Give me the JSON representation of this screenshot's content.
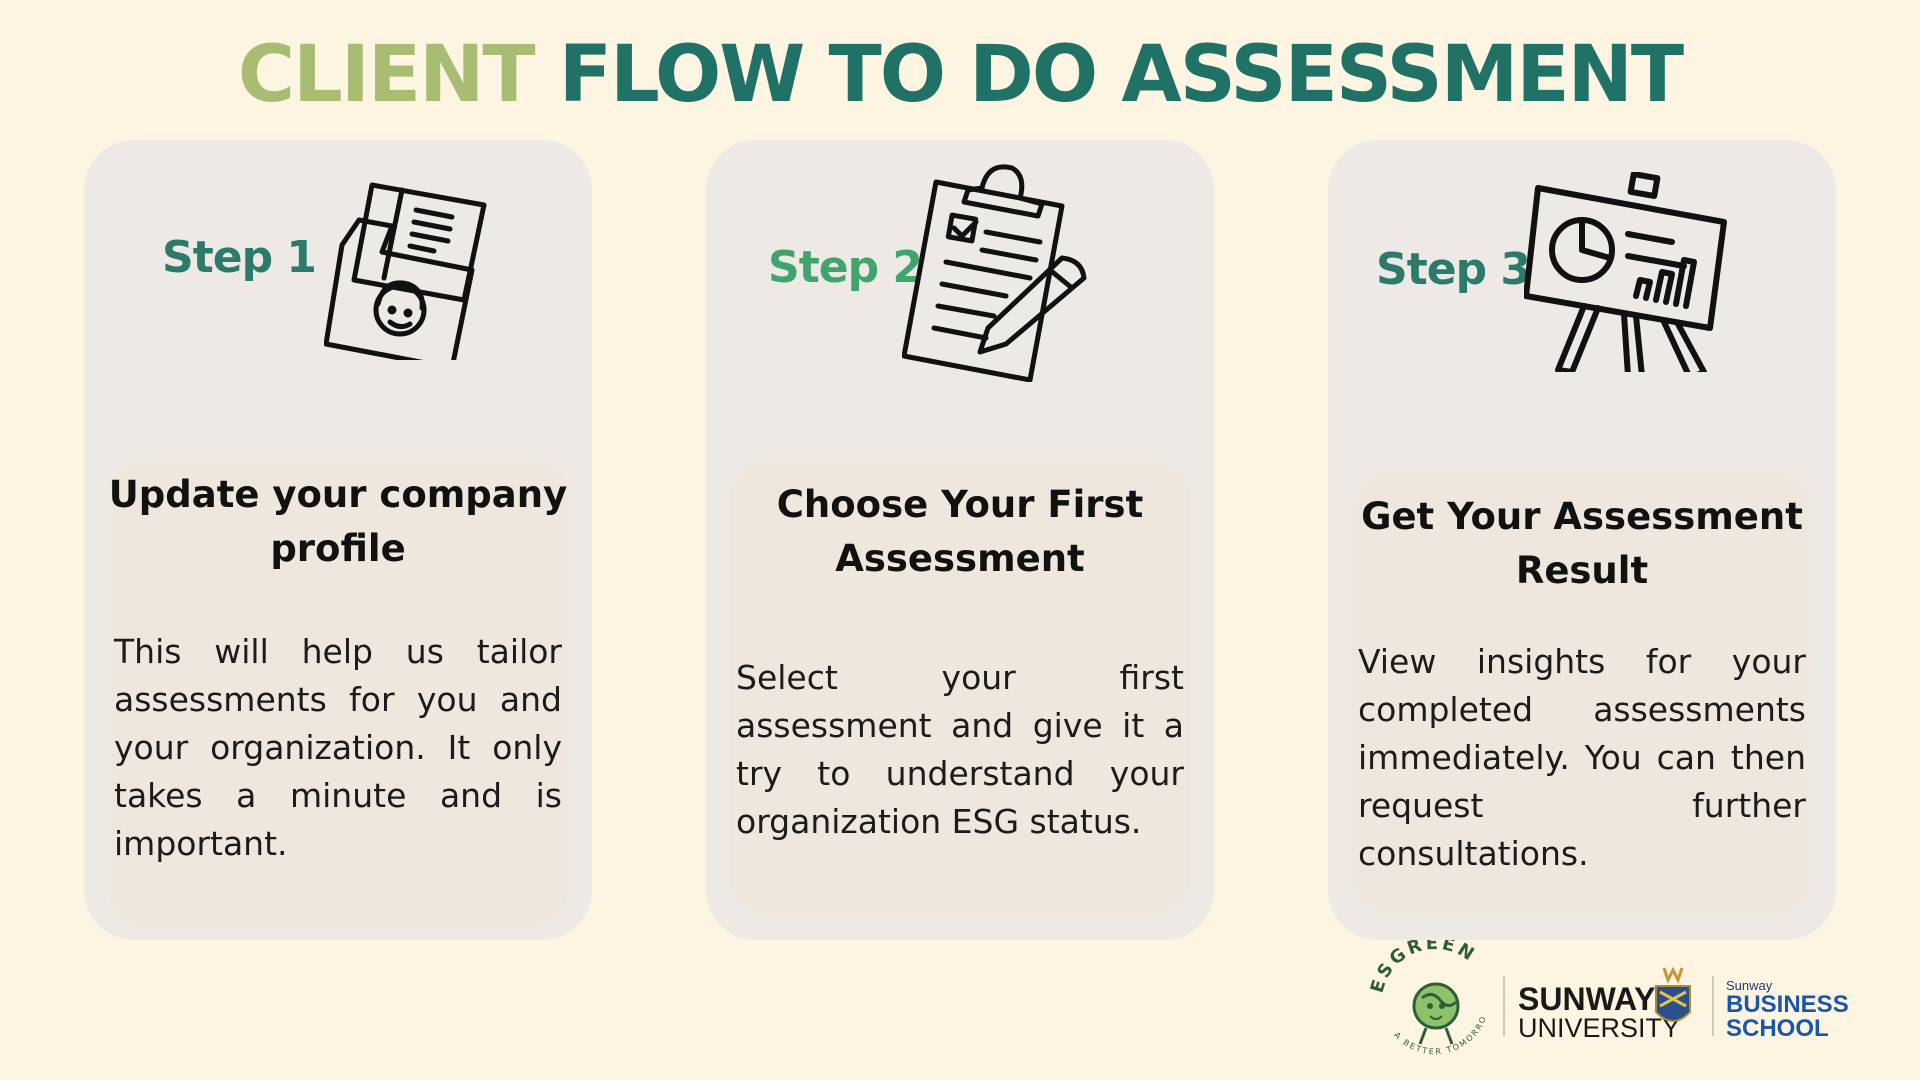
{
  "title": {
    "part1": "CLIENT",
    "part2": "FLOW TO DO ASSESSMENT"
  },
  "colors": {
    "background": "#fdf5e2",
    "title_light": "#a9bd72",
    "title_dark": "#1f7265",
    "step_dark": "#2b7a6b",
    "step_green": "#3fa56d",
    "card": "#ede9e4"
  },
  "steps": [
    {
      "label": "Step 1",
      "icon": "profile-folder-icon",
      "heading": "Update your company profile",
      "body": "This will help us tailor assessments for you and your organization. It only takes a minute and is important."
    },
    {
      "label": "Step 2",
      "icon": "clipboard-checklist-icon",
      "heading": "Choose Your First Assessment",
      "body": "Select your first assessment and give it a try to understand your organization ESG status."
    },
    {
      "label": "Step 3",
      "icon": "presentation-chart-icon",
      "heading": "Get Your Assessment Result",
      "body": "View insights for your completed assessments immediately. You can then request further consultations."
    }
  ],
  "footer": {
    "esgreen_logo": "ESGREEN",
    "esgreen_tagline": "A BETTER TOMORROW",
    "university_name": "SUNWAY",
    "university_sub": "UNIVERSITY",
    "school_small": "Sunway",
    "school_line1": "BUSINESS",
    "school_line2": "SCHOOL"
  }
}
